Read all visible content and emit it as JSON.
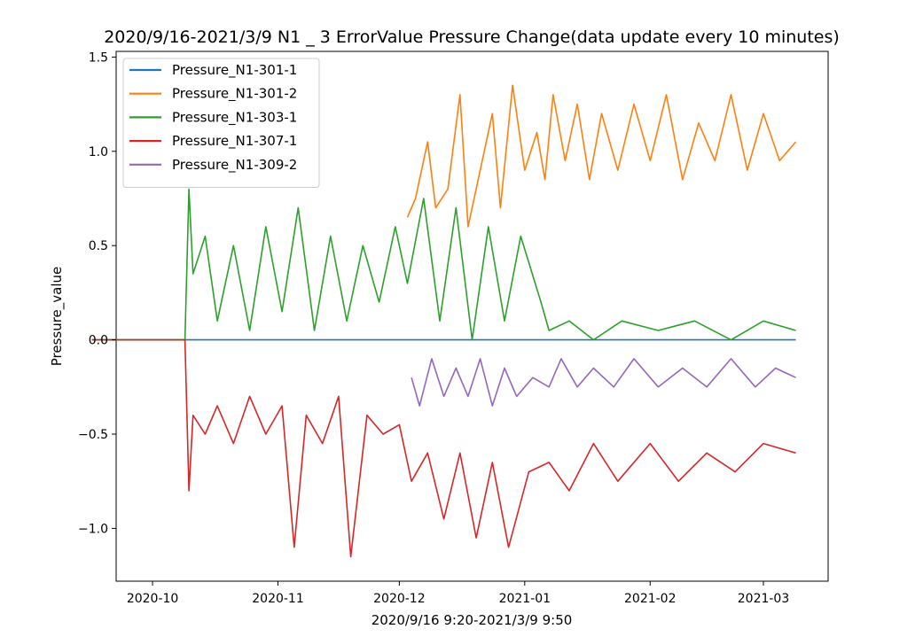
{
  "chart_data": {
    "type": "line",
    "title": "2020/9/16-2021/3/9 N1 _ 3 ErrorValue Pressure Change(data update every 10 minutes)",
    "xlabel": "2020/9/16 9:20-2021/3/9 9:50",
    "ylabel": "Pressure_value",
    "xlim": [
      "2020-09-22",
      "2021-03-17"
    ],
    "ylim": [
      -1.28,
      1.53
    ],
    "x_ticks": [
      {
        "date": "2020-10-01",
        "label": "2020-10"
      },
      {
        "date": "2020-11-01",
        "label": "2020-11"
      },
      {
        "date": "2020-12-01",
        "label": "2020-12"
      },
      {
        "date": "2021-01-01",
        "label": "2021-01"
      },
      {
        "date": "2021-02-01",
        "label": "2021-02"
      },
      {
        "date": "2021-03-01",
        "label": "2021-03"
      }
    ],
    "y_ticks": [
      {
        "value": 1.5,
        "label": "1.5"
      },
      {
        "value": 1.0,
        "label": "1.0"
      },
      {
        "value": 0.5,
        "label": "0.5"
      },
      {
        "value": 0.0,
        "label": "0.0"
      },
      {
        "value": -0.5,
        "label": "−0.5"
      },
      {
        "value": -1.0,
        "label": "−1.0"
      }
    ],
    "grid": false,
    "legend_position": "top-left",
    "series": [
      {
        "name": "Pressure_N1-301-1",
        "color": "#1f77b4",
        "points": [
          [
            "2020-09-16",
            0.0
          ],
          [
            "2020-10-09",
            0.0
          ],
          [
            "2020-12-03",
            0.0
          ],
          [
            "2021-01-07",
            0.0
          ],
          [
            "2021-03-09",
            0.0
          ]
        ]
      },
      {
        "name": "Pressure_N1-301-2",
        "color": "#ff7f0e",
        "points": [
          [
            "2020-12-03",
            0.65
          ],
          [
            "2020-12-05",
            0.75
          ],
          [
            "2020-12-08",
            1.05
          ],
          [
            "2020-12-10",
            0.7
          ],
          [
            "2020-12-13",
            0.8
          ],
          [
            "2020-12-16",
            1.3
          ],
          [
            "2020-12-18",
            0.6
          ],
          [
            "2020-12-21",
            0.9
          ],
          [
            "2020-12-24",
            1.2
          ],
          [
            "2020-12-26",
            0.7
          ],
          [
            "2020-12-29",
            1.35
          ],
          [
            "2021-01-01",
            0.9
          ],
          [
            "2021-01-04",
            1.1
          ],
          [
            "2021-01-06",
            0.85
          ],
          [
            "2021-01-08",
            1.3
          ],
          [
            "2021-01-11",
            0.95
          ],
          [
            "2021-01-14",
            1.25
          ],
          [
            "2021-01-17",
            0.85
          ],
          [
            "2021-01-20",
            1.2
          ],
          [
            "2021-01-24",
            0.9
          ],
          [
            "2021-01-28",
            1.25
          ],
          [
            "2021-02-01",
            0.95
          ],
          [
            "2021-02-05",
            1.3
          ],
          [
            "2021-02-09",
            0.85
          ],
          [
            "2021-02-13",
            1.15
          ],
          [
            "2021-02-17",
            0.95
          ],
          [
            "2021-02-21",
            1.3
          ],
          [
            "2021-02-25",
            0.9
          ],
          [
            "2021-03-01",
            1.2
          ],
          [
            "2021-03-05",
            0.95
          ],
          [
            "2021-03-09",
            1.05
          ]
        ]
      },
      {
        "name": "Pressure_N1-303-1",
        "color": "#2ca02c",
        "points": [
          [
            "2020-09-16",
            0.0
          ],
          [
            "2020-10-09",
            0.0
          ],
          [
            "2020-10-10",
            0.8
          ],
          [
            "2020-10-11",
            0.35
          ],
          [
            "2020-10-14",
            0.55
          ],
          [
            "2020-10-17",
            0.1
          ],
          [
            "2020-10-21",
            0.5
          ],
          [
            "2020-10-25",
            0.05
          ],
          [
            "2020-10-29",
            0.6
          ],
          [
            "2020-11-02",
            0.15
          ],
          [
            "2020-11-06",
            0.7
          ],
          [
            "2020-11-10",
            0.05
          ],
          [
            "2020-11-14",
            0.55
          ],
          [
            "2020-11-18",
            0.1
          ],
          [
            "2020-11-22",
            0.5
          ],
          [
            "2020-11-26",
            0.2
          ],
          [
            "2020-11-30",
            0.6
          ],
          [
            "2020-12-03",
            0.3
          ],
          [
            "2020-12-07",
            0.75
          ],
          [
            "2020-12-11",
            0.1
          ],
          [
            "2020-12-15",
            0.7
          ],
          [
            "2020-12-19",
            0.0
          ],
          [
            "2020-12-23",
            0.6
          ],
          [
            "2020-12-27",
            0.1
          ],
          [
            "2020-12-31",
            0.55
          ],
          [
            "2021-01-05",
            0.2
          ],
          [
            "2021-01-07",
            0.05
          ],
          [
            "2021-01-12",
            0.1
          ],
          [
            "2021-01-18",
            0.0
          ],
          [
            "2021-01-25",
            0.1
          ],
          [
            "2021-02-03",
            0.05
          ],
          [
            "2021-02-12",
            0.1
          ],
          [
            "2021-02-21",
            0.0
          ],
          [
            "2021-03-01",
            0.1
          ],
          [
            "2021-03-09",
            0.05
          ]
        ]
      },
      {
        "name": "Pressure_N1-307-1",
        "color": "#d62728",
        "points": [
          [
            "2020-09-16",
            0.0
          ],
          [
            "2020-10-09",
            0.0
          ],
          [
            "2020-10-10",
            -0.8
          ],
          [
            "2020-10-11",
            -0.4
          ],
          [
            "2020-10-14",
            -0.5
          ],
          [
            "2020-10-17",
            -0.35
          ],
          [
            "2020-10-21",
            -0.55
          ],
          [
            "2020-10-25",
            -0.3
          ],
          [
            "2020-10-29",
            -0.5
          ],
          [
            "2020-11-02",
            -0.35
          ],
          [
            "2020-11-05",
            -1.1
          ],
          [
            "2020-11-08",
            -0.4
          ],
          [
            "2020-11-12",
            -0.55
          ],
          [
            "2020-11-16",
            -0.3
          ],
          [
            "2020-11-19",
            -1.15
          ],
          [
            "2020-11-23",
            -0.4
          ],
          [
            "2020-11-27",
            -0.5
          ],
          [
            "2020-12-01",
            -0.45
          ],
          [
            "2020-12-04",
            -0.75
          ],
          [
            "2020-12-08",
            -0.6
          ],
          [
            "2020-12-12",
            -0.95
          ],
          [
            "2020-12-16",
            -0.6
          ],
          [
            "2020-12-20",
            -1.05
          ],
          [
            "2020-12-24",
            -0.65
          ],
          [
            "2020-12-28",
            -1.1
          ],
          [
            "2021-01-02",
            -0.7
          ],
          [
            "2021-01-07",
            -0.65
          ],
          [
            "2021-01-12",
            -0.8
          ],
          [
            "2021-01-18",
            -0.55
          ],
          [
            "2021-01-24",
            -0.75
          ],
          [
            "2021-02-01",
            -0.55
          ],
          [
            "2021-02-08",
            -0.75
          ],
          [
            "2021-02-15",
            -0.6
          ],
          [
            "2021-02-22",
            -0.7
          ],
          [
            "2021-03-01",
            -0.55
          ],
          [
            "2021-03-09",
            -0.6
          ]
        ]
      },
      {
        "name": "Pressure_N1-309-2",
        "color": "#9467bd",
        "points": [
          [
            "2020-12-04",
            -0.2
          ],
          [
            "2020-12-06",
            -0.35
          ],
          [
            "2020-12-09",
            -0.1
          ],
          [
            "2020-12-12",
            -0.3
          ],
          [
            "2020-12-15",
            -0.15
          ],
          [
            "2020-12-18",
            -0.3
          ],
          [
            "2020-12-21",
            -0.1
          ],
          [
            "2020-12-24",
            -0.35
          ],
          [
            "2020-12-27",
            -0.15
          ],
          [
            "2020-12-30",
            -0.3
          ],
          [
            "2021-01-03",
            -0.2
          ],
          [
            "2021-01-07",
            -0.25
          ],
          [
            "2021-01-10",
            -0.1
          ],
          [
            "2021-01-14",
            -0.25
          ],
          [
            "2021-01-18",
            -0.15
          ],
          [
            "2021-01-23",
            -0.25
          ],
          [
            "2021-01-28",
            -0.1
          ],
          [
            "2021-02-03",
            -0.25
          ],
          [
            "2021-02-09",
            -0.15
          ],
          [
            "2021-02-15",
            -0.25
          ],
          [
            "2021-02-21",
            -0.1
          ],
          [
            "2021-02-27",
            -0.25
          ],
          [
            "2021-03-04",
            -0.15
          ],
          [
            "2021-03-09",
            -0.2
          ]
        ]
      }
    ]
  }
}
